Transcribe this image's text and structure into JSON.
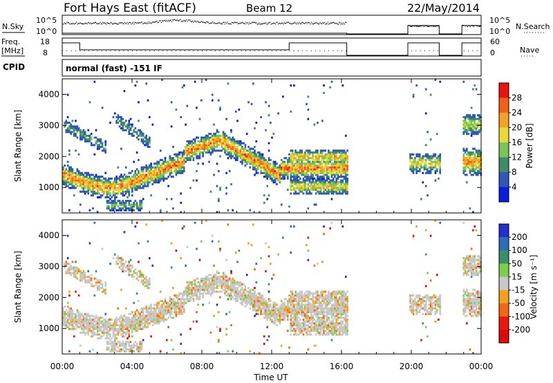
{
  "header": {
    "station": "Fort Hays East (fitACF)",
    "beam": "Beam 12",
    "date": "22/May/2014"
  },
  "strips": {
    "nsky_label": "N.Sky",
    "nsky_ticks": [
      "10^5",
      "10^0"
    ],
    "nsearch_label": "N.Search",
    "nsearch_ticks": [
      "10^5",
      "10^0"
    ],
    "freq_label_line1": "Freq.",
    "freq_label_line2": "[MHz]",
    "freq_ticks": [
      "18",
      "8"
    ],
    "nave_label": "Nave",
    "nave_ticks": [
      "60",
      "0"
    ],
    "cpid_label": "CPID",
    "cpid_value": "normal (fast) -151 IF"
  },
  "chart_data": [
    {
      "type": "heatmap",
      "panel": "power",
      "ylabel": "Slant Range [km]",
      "yticks": [
        "1000",
        "2000",
        "3000",
        "4000"
      ],
      "ylim": [
        180,
        4500
      ],
      "xlim": [
        0,
        24
      ],
      "xtick_values": [
        0,
        4,
        8,
        12,
        16,
        20,
        24
      ],
      "colorbar_label": "Power [dB]",
      "colorbar_ticks": [
        "4",
        "8",
        "12",
        "16",
        "20",
        "24",
        "28"
      ],
      "colorbar_colors": [
        "#0a1cdc",
        "#2e58b4",
        "#3f8a6a",
        "#7ac45a",
        "#e9d83b",
        "#f3a226",
        "#ef6119",
        "#e8140e"
      ],
      "data_gaps_hours": [
        [
          16.3,
          19.8
        ],
        [
          21.6,
          22.9
        ]
      ]
    },
    {
      "type": "heatmap",
      "panel": "velocity",
      "ylabel": "Slant Range [km]",
      "yticks": [
        "1000",
        "2000",
        "3000",
        "4000"
      ],
      "ylim": [
        180,
        4500
      ],
      "xlim": [
        0,
        24
      ],
      "xtick_values": [
        0,
        4,
        8,
        12,
        16,
        20,
        24
      ],
      "xticks": [
        "00:00",
        "04:00",
        "08:00",
        "12:00",
        "16:00",
        "20:00",
        "00:00"
      ],
      "xlabel": "Time UT",
      "colorbar_label": "Velocity [m s⁻¹]",
      "colorbar_ticks": [
        "200",
        "100",
        "50",
        "15",
        "-15",
        "-50",
        "-100",
        "-200"
      ],
      "colorbar_colors": [
        "#2030c8",
        "#2e6db5",
        "#3c8f6a",
        "#7ccf4a",
        "#c8c8c8",
        "#f2a020",
        "#f06a14",
        "#e8180e",
        "#dc0a0a"
      ],
      "data_gaps_hours": [
        [
          16.3,
          19.8
        ],
        [
          21.6,
          22.9
        ]
      ]
    }
  ]
}
